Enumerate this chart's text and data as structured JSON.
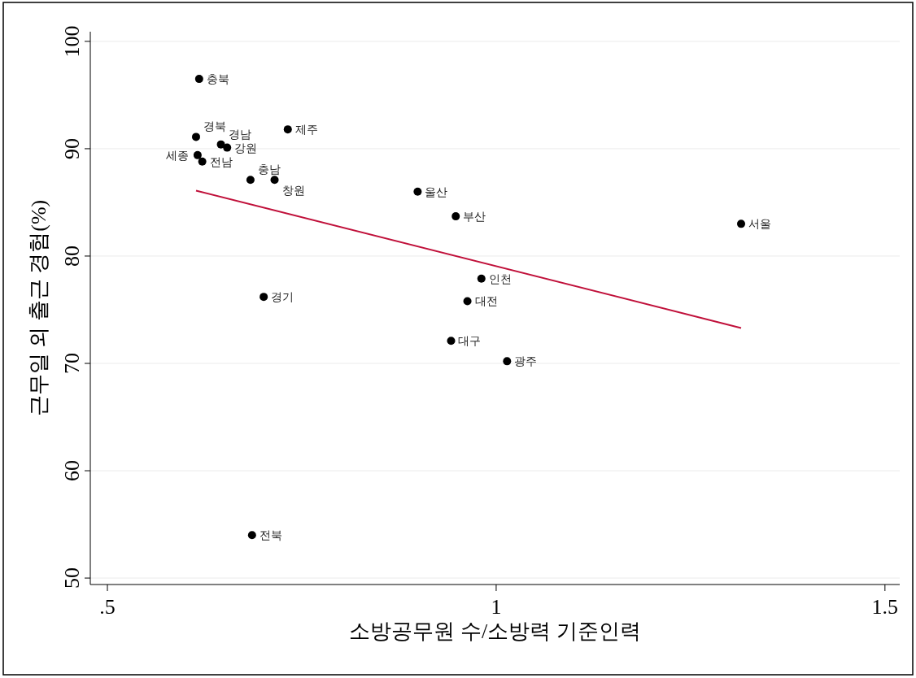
{
  "chart_data": {
    "type": "scatter",
    "xlabel": "소방공무원 수/소방력 기준인력",
    "ylabel": "근무일 외 출근 경험(%)",
    "xlim": [
      0.478,
      1.519
    ],
    "ylim": [
      49.4,
      100.9
    ],
    "xticks": [
      {
        "value": 0.5,
        "label": ".5"
      },
      1,
      {
        "value": 1.5,
        "label": "1.5"
      }
    ],
    "yticks": [
      50,
      60,
      70,
      80,
      90,
      100
    ],
    "grid": "y",
    "marker": "circle",
    "series": [
      {
        "type": "scatter",
        "color": "#000000",
        "x": [
          0.618,
          0.614,
          0.646,
          0.654,
          0.616,
          0.622,
          0.684,
          0.715,
          0.732,
          0.899,
          0.948,
          1.315,
          0.981,
          0.963,
          0.701,
          0.942,
          1.014,
          0.686
        ],
        "values": [
          96.5,
          91.1,
          90.4,
          90.1,
          89.4,
          88.8,
          87.1,
          87.1,
          91.8,
          86.0,
          83.7,
          83.0,
          77.9,
          75.8,
          76.2,
          72.1,
          70.2,
          54.0
        ]
      },
      {
        "type": "line",
        "color": "#c0103a",
        "marker": "none",
        "x": [
          0.614,
          1.315
        ],
        "values": [
          86.1,
          73.3
        ]
      }
    ],
    "annotations": [
      {
        "text": "충북",
        "x": 0.618,
        "y": 96.5
      },
      {
        "text": "경북",
        "x": 0.614,
        "y": 91.1
      },
      {
        "text": "경남",
        "x": 0.646,
        "y": 90.4
      },
      {
        "text": "강원",
        "x": 0.654,
        "y": 90.1
      },
      {
        "text": "세종",
        "x": 0.616,
        "y": 89.4
      },
      {
        "text": "전남",
        "x": 0.622,
        "y": 88.8
      },
      {
        "text": "충남",
        "x": 0.684,
        "y": 87.1
      },
      {
        "text": "창원",
        "x": 0.715,
        "y": 87.1
      },
      {
        "text": "제주",
        "x": 0.732,
        "y": 91.8
      },
      {
        "text": "울산",
        "x": 0.899,
        "y": 86.0
      },
      {
        "text": "부산",
        "x": 0.948,
        "y": 83.7
      },
      {
        "text": "서울",
        "x": 1.315,
        "y": 83.0
      },
      {
        "text": "인천",
        "x": 0.981,
        "y": 77.9
      },
      {
        "text": "대전",
        "x": 0.963,
        "y": 75.8
      },
      {
        "text": "경기",
        "x": 0.701,
        "y": 76.2
      },
      {
        "text": "대구",
        "x": 0.942,
        "y": 72.1
      },
      {
        "text": "광주",
        "x": 1.014,
        "y": 70.2
      },
      {
        "text": "전북",
        "x": 0.686,
        "y": 54.0
      }
    ]
  }
}
